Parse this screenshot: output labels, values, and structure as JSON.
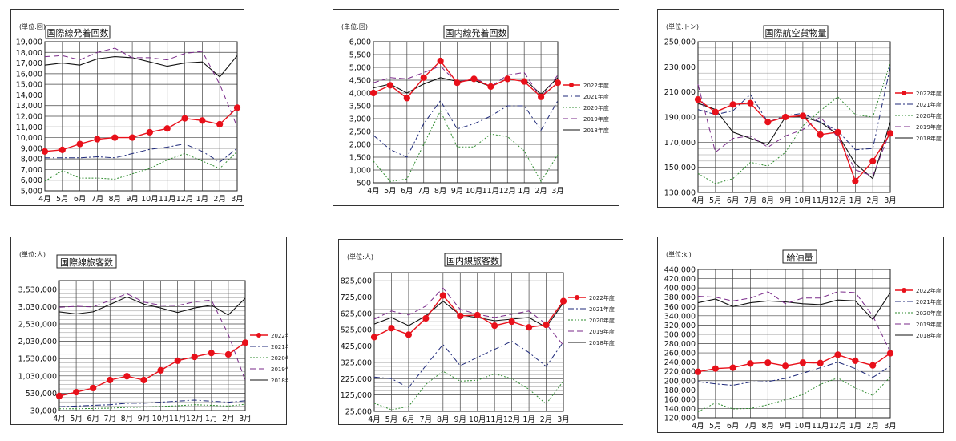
{
  "months": [
    "4月",
    "5月",
    "6月",
    "7月",
    "8月",
    "9月",
    "10月",
    "11月",
    "12月",
    "1月",
    "2月",
    "3月"
  ],
  "legend_names": [
    "2022年度",
    "2021年度",
    "2020年度",
    "2019年度",
    "2018年度"
  ],
  "colors": {
    "2022年度": "#e8101a",
    "2021年度": "#1f2a7a",
    "2020年度": "#2e8b2e",
    "2019年度": "#7a2a8a",
    "2018年度": "#111111",
    "grid": "#444444"
  },
  "chart_data": [
    {
      "type": "line",
      "title": "国際線発着回数",
      "unit": "(単位:回)",
      "ylim": [
        5000,
        19000
      ],
      "yticks": [
        "5,000",
        "6,000",
        "7,000",
        "8,000",
        "9,000",
        "10,000",
        "11,000",
        "12,000",
        "13,000",
        "14,000",
        "15,000",
        "16,000",
        "17,000",
        "18,000",
        "19,000"
      ],
      "ytick_values": [
        5000,
        6000,
        7000,
        8000,
        9000,
        10000,
        11000,
        12000,
        13000,
        14000,
        15000,
        16000,
        17000,
        18000,
        19000
      ],
      "legend_position": "none",
      "series": [
        {
          "name": "2022年度",
          "values": [
            8700,
            8850,
            9400,
            9850,
            10000,
            10000,
            10500,
            10850,
            11800,
            11600,
            11250,
            12800
          ]
        },
        {
          "name": "2021年度",
          "values": [
            8100,
            8100,
            8100,
            8200,
            8100,
            8500,
            8900,
            9100,
            9400,
            8700,
            7700,
            9000
          ]
        },
        {
          "name": "2020年度",
          "values": [
            5900,
            6900,
            6200,
            6200,
            6100,
            6600,
            7100,
            7900,
            8500,
            7800,
            7100,
            8700
          ]
        },
        {
          "name": "2019年度",
          "values": [
            17600,
            17700,
            17300,
            18000,
            18400,
            17500,
            17500,
            17300,
            17900,
            18100,
            15000,
            11000
          ]
        },
        {
          "name": "2018年度",
          "values": [
            16800,
            17000,
            16800,
            17400,
            17600,
            17500,
            17100,
            16700,
            17000,
            17100,
            15700,
            17700
          ]
        }
      ]
    },
    {
      "type": "line",
      "title": "国内線発着回数",
      "unit": "(単位:回)",
      "ylim": [
        500,
        6000
      ],
      "yticks": [
        "500",
        "1,000",
        "1,500",
        "2,000",
        "2,500",
        "3,000",
        "3,500",
        "4,000",
        "4,500",
        "5,000",
        "5,500",
        "6,000"
      ],
      "ytick_values": [
        500,
        1000,
        1500,
        2000,
        2500,
        3000,
        3500,
        4000,
        4500,
        5000,
        5500,
        6000
      ],
      "legend_position": "right",
      "series": [
        {
          "name": "2022年度",
          "values": [
            4000,
            4300,
            3800,
            4600,
            5250,
            4400,
            4550,
            4250,
            4550,
            4450,
            3850,
            4400
          ]
        },
        {
          "name": "2021年度",
          "values": [
            2350,
            1800,
            1500,
            2800,
            3700,
            2600,
            2800,
            3100,
            3500,
            3500,
            2550,
            3700
          ]
        },
        {
          "name": "2020年度",
          "values": [
            1350,
            550,
            650,
            2000,
            3300,
            1900,
            1900,
            2400,
            2300,
            1750,
            550,
            1600
          ]
        },
        {
          "name": "2019年度",
          "values": [
            4400,
            4600,
            4550,
            4800,
            5050,
            4400,
            4600,
            4250,
            4700,
            4800,
            3800,
            4700
          ]
        },
        {
          "name": "2018年度",
          "values": [
            4200,
            4350,
            4000,
            4350,
            4600,
            4450,
            4500,
            4250,
            4550,
            4550,
            3950,
            4600
          ]
        }
      ]
    },
    {
      "type": "line",
      "title": "国際航空貨物量",
      "unit": "(単位:トン)",
      "ylim": [
        130000,
        250000
      ],
      "yticks": [
        "130,000",
        "150,000",
        "170,000",
        "190,000",
        "210,000",
        "230,000",
        "250,000"
      ],
      "ytick_values": [
        130000,
        150000,
        170000,
        190000,
        210000,
        230000,
        250000
      ],
      "legend_position": "right",
      "series": [
        {
          "name": "2022年度",
          "values": [
            204000,
            194000,
            200000,
            201000,
            186000,
            190000,
            191000,
            176000,
            178000,
            139000,
            155000,
            177000
          ]
        },
        {
          "name": "2021年度",
          "values": [
            196000,
            192000,
            195000,
            208000,
            186000,
            191000,
            193000,
            186000,
            179000,
            164000,
            165000,
            230000
          ]
        },
        {
          "name": "2020年度",
          "values": [
            145000,
            137000,
            141000,
            154000,
            151000,
            162000,
            183000,
            195000,
            206000,
            192000,
            190000,
            233000
          ]
        },
        {
          "name": "2019年度",
          "values": [
            216000,
            162000,
            173000,
            175000,
            166000,
            175000,
            180000,
            190000,
            174000,
            148000,
            143000,
            179000
          ]
        },
        {
          "name": "2018年度",
          "values": [
            201000,
            196000,
            178000,
            173000,
            168000,
            190000,
            190000,
            186000,
            176000,
            153000,
            141000,
            186000
          ]
        }
      ]
    },
    {
      "type": "line",
      "title": "国際線旅客数",
      "unit": "(単位:人)",
      "ylim": [
        30000,
        3780000
      ],
      "yticks": [
        "30,000",
        "530,000",
        "1,030,000",
        "1,530,000",
        "2,030,000",
        "2,530,000",
        "3,030,000",
        "3,530,000"
      ],
      "ytick_values": [
        30000,
        530000,
        1030000,
        1530000,
        2030000,
        2530000,
        3030000,
        3530000
      ],
      "legend_position": "right",
      "series": [
        {
          "name": "2022年度",
          "values": [
            450000,
            560000,
            680000,
            910000,
            1020000,
            910000,
            1190000,
            1470000,
            1580000,
            1690000,
            1650000,
            1990000
          ]
        },
        {
          "name": "2021年度",
          "values": [
            140000,
            160000,
            180000,
            200000,
            240000,
            240000,
            270000,
            300000,
            330000,
            300000,
            270000,
            310000
          ]
        },
        {
          "name": "2020年度",
          "values": [
            80000,
            80000,
            90000,
            100000,
            120000,
            130000,
            150000,
            170000,
            200000,
            180000,
            160000,
            210000
          ]
        },
        {
          "name": "2019年度",
          "values": [
            3010000,
            3040000,
            3020000,
            3210000,
            3400000,
            3160000,
            3070000,
            3060000,
            3170000,
            3220000,
            2230000,
            900000
          ]
        },
        {
          "name": "2018年度",
          "values": [
            2880000,
            2820000,
            2880000,
            3090000,
            3310000,
            3100000,
            2990000,
            2860000,
            2990000,
            3070000,
            2790000,
            3270000
          ]
        }
      ]
    },
    {
      "type": "line",
      "title": "国内線旅客数",
      "unit": "(単位:人)",
      "ylim": [
        25000,
        875000
      ],
      "yticks": [
        "25,000",
        "125,000",
        "225,000",
        "325,000",
        "425,000",
        "525,000",
        "625,000",
        "725,000",
        "825,000"
      ],
      "ytick_values": [
        25000,
        125000,
        225000,
        325000,
        425000,
        525000,
        625000,
        725000,
        825000
      ],
      "legend_position": "right",
      "series": [
        {
          "name": "2022年度",
          "values": [
            480000,
            535000,
            495000,
            595000,
            735000,
            610000,
            615000,
            550000,
            575000,
            540000,
            555000,
            700000
          ]
        },
        {
          "name": "2021年度",
          "values": [
            235000,
            225000,
            170000,
            305000,
            435000,
            305000,
            355000,
            405000,
            455000,
            385000,
            300000,
            450000
          ]
        },
        {
          "name": "2020年度",
          "values": [
            75000,
            35000,
            55000,
            190000,
            270000,
            210000,
            215000,
            255000,
            225000,
            160000,
            70000,
            210000
          ]
        },
        {
          "name": "2019年度",
          "values": [
            590000,
            640000,
            615000,
            670000,
            780000,
            650000,
            620000,
            600000,
            620000,
            640000,
            560000,
            430000
          ]
        },
        {
          "name": "2018年度",
          "values": [
            560000,
            600000,
            550000,
            610000,
            700000,
            615000,
            600000,
            580000,
            590000,
            600000,
            540000,
            690000
          ]
        }
      ]
    },
    {
      "type": "line",
      "title": "給油量",
      "unit": "(単位:kl)",
      "ylim": [
        120000,
        440000
      ],
      "yticks": [
        "120,000",
        "140,000",
        "160,000",
        "180,000",
        "200,000",
        "220,000",
        "240,000",
        "260,000",
        "280,000",
        "300,000",
        "320,000",
        "340,000",
        "360,000",
        "380,000",
        "400,000",
        "420,000",
        "440,000"
      ],
      "ytick_values": [
        120000,
        140000,
        160000,
        180000,
        200000,
        220000,
        240000,
        260000,
        280000,
        300000,
        320000,
        340000,
        360000,
        380000,
        400000,
        420000,
        440000
      ],
      "legend_position": "right",
      "series": [
        {
          "name": "2022年度",
          "values": [
            219000,
            226000,
            228000,
            237000,
            239000,
            232000,
            239000,
            238000,
            256000,
            243000,
            233000,
            259000
          ]
        },
        {
          "name": "2021年度",
          "values": [
            198000,
            193000,
            190000,
            197000,
            198000,
            205000,
            216000,
            228000,
            240000,
            226000,
            207000,
            231000
          ]
        },
        {
          "name": "2020年度",
          "values": [
            133000,
            152000,
            139000,
            140000,
            148000,
            159000,
            170000,
            192000,
            206000,
            184000,
            168000,
            208000
          ]
        },
        {
          "name": "2019年度",
          "values": [
            382000,
            380000,
            372000,
            378000,
            392000,
            366000,
            378000,
            378000,
            392000,
            390000,
            340000,
            262000
          ]
        },
        {
          "name": "2018年度",
          "values": [
            368000,
            376000,
            360000,
            368000,
            372000,
            370000,
            366000,
            364000,
            374000,
            372000,
            332000,
            390000
          ]
        }
      ]
    }
  ]
}
